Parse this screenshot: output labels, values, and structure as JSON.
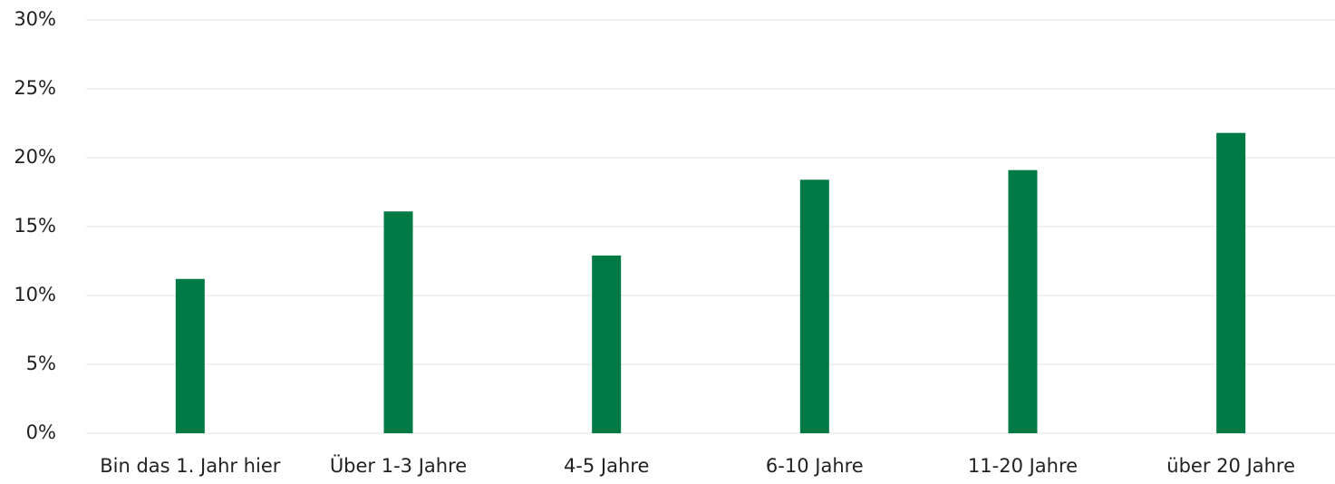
{
  "chart_data": {
    "type": "bar",
    "categories": [
      "Bin das 1. Jahr hier",
      "Über 1-3 Jahre",
      "4-5 Jahre",
      "6-10 Jahre",
      "11-20 Jahre",
      "über 20 Jahre"
    ],
    "values": [
      11.2,
      16.1,
      12.9,
      18.4,
      19.1,
      21.8
    ],
    "color": "#007a45",
    "ylim": [
      0,
      30
    ],
    "yticks": [
      {
        "value": 0,
        "label": "0%"
      },
      {
        "value": 5,
        "label": "5%"
      },
      {
        "value": 10,
        "label": "10%"
      },
      {
        "value": 15,
        "label": "15%"
      },
      {
        "value": 20,
        "label": "20%"
      },
      {
        "value": 25,
        "label": "25%"
      },
      {
        "value": 30,
        "label": "30%"
      }
    ],
    "grid": true
  }
}
